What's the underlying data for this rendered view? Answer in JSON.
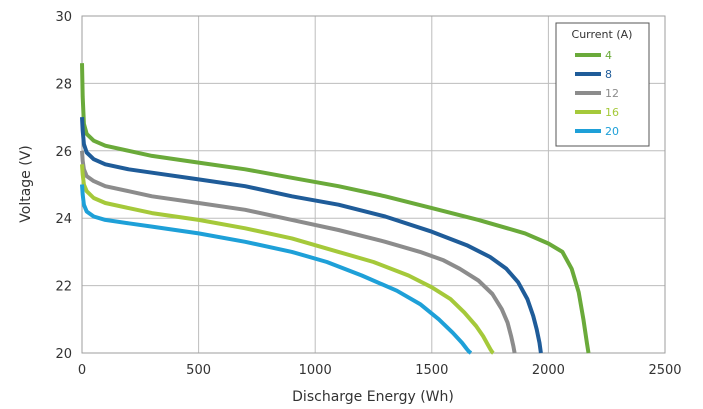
{
  "chart_data": {
    "type": "line",
    "xlabel": "Discharge Energy (Wh)",
    "ylabel": "Voltage (V)",
    "xlim": [
      0,
      2500
    ],
    "ylim": [
      20,
      30
    ],
    "xticks": [
      "0",
      "500",
      "1000",
      "1500",
      "2000",
      "2500"
    ],
    "yticks": [
      "20",
      "22",
      "24",
      "26",
      "28",
      "30"
    ],
    "grid": true,
    "legend": {
      "title": "Current (A)",
      "placement": "top-right"
    },
    "series": [
      {
        "name": "4",
        "color": "#6aaa3a",
        "x": [
          0,
          3,
          8,
          20,
          50,
          100,
          200,
          300,
          500,
          700,
          900,
          1100,
          1300,
          1500,
          1700,
          1900,
          2000,
          2060,
          2100,
          2130,
          2150,
          2165,
          2172
        ],
        "y": [
          28.6,
          27.6,
          26.8,
          26.5,
          26.3,
          26.15,
          26.0,
          25.85,
          25.65,
          25.45,
          25.2,
          24.95,
          24.65,
          24.3,
          23.95,
          23.55,
          23.25,
          23.0,
          22.5,
          21.8,
          21.0,
          20.3,
          20.0
        ]
      },
      {
        "name": "8",
        "color": "#1f5c99",
        "x": [
          0,
          3,
          8,
          20,
          50,
          100,
          200,
          300,
          500,
          700,
          900,
          1100,
          1300,
          1500,
          1650,
          1750,
          1820,
          1870,
          1910,
          1935,
          1950,
          1962,
          1968
        ],
        "y": [
          27.0,
          26.6,
          26.2,
          25.95,
          25.75,
          25.6,
          25.45,
          25.35,
          25.15,
          24.95,
          24.65,
          24.4,
          24.05,
          23.6,
          23.2,
          22.85,
          22.5,
          22.1,
          21.6,
          21.1,
          20.7,
          20.3,
          20.0
        ]
      },
      {
        "name": "12",
        "color": "#8c8c8c",
        "x": [
          0,
          3,
          8,
          20,
          50,
          100,
          200,
          300,
          500,
          700,
          900,
          1100,
          1300,
          1450,
          1550,
          1620,
          1700,
          1760,
          1800,
          1825,
          1840,
          1850,
          1855
        ],
        "y": [
          26.0,
          25.7,
          25.45,
          25.25,
          25.1,
          24.95,
          24.8,
          24.65,
          24.45,
          24.25,
          23.95,
          23.65,
          23.3,
          23.0,
          22.75,
          22.5,
          22.15,
          21.75,
          21.3,
          20.9,
          20.5,
          20.2,
          20.0
        ]
      },
      {
        "name": "16",
        "color": "#a5c93a",
        "x": [
          0,
          3,
          8,
          20,
          50,
          100,
          200,
          300,
          500,
          700,
          900,
          1100,
          1250,
          1400,
          1500,
          1580,
          1640,
          1690,
          1720,
          1740,
          1752,
          1760,
          1764
        ],
        "y": [
          25.6,
          25.3,
          25.0,
          24.8,
          24.6,
          24.45,
          24.3,
          24.15,
          23.95,
          23.7,
          23.4,
          23.0,
          22.7,
          22.3,
          21.95,
          21.6,
          21.2,
          20.8,
          20.5,
          20.25,
          20.1,
          20.02,
          20.0
        ]
      },
      {
        "name": "20",
        "color": "#1ea0d8",
        "x": [
          0,
          3,
          8,
          20,
          50,
          100,
          200,
          300,
          500,
          700,
          900,
          1050,
          1200,
          1350,
          1450,
          1530,
          1590,
          1630,
          1650,
          1660,
          1668
        ],
        "y": [
          25.0,
          24.7,
          24.4,
          24.2,
          24.05,
          23.95,
          23.85,
          23.75,
          23.55,
          23.3,
          23.0,
          22.7,
          22.3,
          21.85,
          21.45,
          21.0,
          20.6,
          20.3,
          20.12,
          20.04,
          20.0
        ]
      }
    ]
  }
}
